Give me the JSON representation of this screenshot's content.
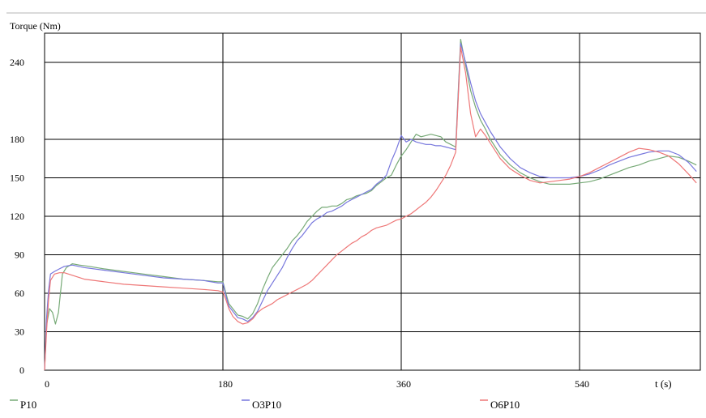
{
  "chart_data": {
    "type": "line",
    "ylabel": "Torque (Nm)",
    "xlabel": "t (s)",
    "xlim": [
      0,
      660
    ],
    "ylim": [
      0,
      260
    ],
    "xticks": [
      0,
      180,
      360,
      540
    ],
    "xtick_labels": [
      "0",
      "180",
      "360",
      "540"
    ],
    "yticks": [
      0,
      30,
      60,
      90,
      120,
      150,
      180,
      240
    ],
    "ytick_labels": [
      "0",
      "30",
      "60",
      "90",
      "120",
      "150",
      "180",
      "240"
    ],
    "grid": true,
    "legend_position": "bottom",
    "series": [
      {
        "name": "P10",
        "color": "#77aa77",
        "points": [
          [
            0,
            0
          ],
          [
            2,
            35
          ],
          [
            5,
            48
          ],
          [
            8,
            45
          ],
          [
            11,
            36
          ],
          [
            14,
            45
          ],
          [
            18,
            75
          ],
          [
            22,
            80
          ],
          [
            28,
            83
          ],
          [
            35,
            82
          ],
          [
            45,
            81
          ],
          [
            60,
            79
          ],
          [
            80,
            77
          ],
          [
            100,
            75
          ],
          [
            120,
            73
          ],
          [
            140,
            71
          ],
          [
            160,
            70
          ],
          [
            175,
            69
          ],
          [
            180,
            69
          ],
          [
            183,
            60
          ],
          [
            186,
            52
          ],
          [
            190,
            48
          ],
          [
            195,
            43
          ],
          [
            200,
            42
          ],
          [
            205,
            40
          ],
          [
            210,
            44
          ],
          [
            215,
            52
          ],
          [
            220,
            63
          ],
          [
            225,
            72
          ],
          [
            230,
            80
          ],
          [
            235,
            85
          ],
          [
            240,
            90
          ],
          [
            245,
            95
          ],
          [
            250,
            101
          ],
          [
            255,
            105
          ],
          [
            260,
            110
          ],
          [
            265,
            116
          ],
          [
            270,
            120
          ],
          [
            275,
            124
          ],
          [
            280,
            127
          ],
          [
            285,
            127
          ],
          [
            290,
            128
          ],
          [
            295,
            128
          ],
          [
            300,
            130
          ],
          [
            305,
            133
          ],
          [
            310,
            134
          ],
          [
            315,
            136
          ],
          [
            320,
            137
          ],
          [
            325,
            138
          ],
          [
            330,
            140
          ],
          [
            335,
            144
          ],
          [
            340,
            147
          ],
          [
            345,
            150
          ],
          [
            350,
            152
          ],
          [
            355,
            160
          ],
          [
            360,
            167
          ],
          [
            365,
            172
          ],
          [
            370,
            178
          ],
          [
            375,
            184
          ],
          [
            380,
            182
          ],
          [
            385,
            183
          ],
          [
            390,
            184
          ],
          [
            395,
            183
          ],
          [
            400,
            182
          ],
          [
            405,
            178
          ],
          [
            410,
            176
          ],
          [
            415,
            174
          ],
          [
            420,
            258
          ],
          [
            425,
            238
          ],
          [
            430,
            218
          ],
          [
            435,
            205
          ],
          [
            440,
            195
          ],
          [
            445,
            188
          ],
          [
            450,
            180
          ],
          [
            460,
            168
          ],
          [
            470,
            160
          ],
          [
            480,
            154
          ],
          [
            490,
            150
          ],
          [
            500,
            147
          ],
          [
            510,
            145
          ],
          [
            520,
            145
          ],
          [
            530,
            145
          ],
          [
            540,
            146
          ],
          [
            550,
            147
          ],
          [
            560,
            149
          ],
          [
            570,
            152
          ],
          [
            580,
            155
          ],
          [
            590,
            158
          ],
          [
            600,
            160
          ],
          [
            610,
            163
          ],
          [
            620,
            165
          ],
          [
            630,
            167
          ],
          [
            640,
            166
          ],
          [
            650,
            163
          ],
          [
            658,
            160
          ]
        ]
      },
      {
        "name": "O3P10",
        "color": "#7777dd",
        "points": [
          [
            0,
            0
          ],
          [
            2,
            40
          ],
          [
            4,
            62
          ],
          [
            6,
            75
          ],
          [
            10,
            77
          ],
          [
            15,
            79
          ],
          [
            20,
            81
          ],
          [
            28,
            82
          ],
          [
            40,
            80
          ],
          [
            60,
            78
          ],
          [
            80,
            76
          ],
          [
            100,
            74
          ],
          [
            120,
            72
          ],
          [
            140,
            71
          ],
          [
            160,
            70
          ],
          [
            175,
            68
          ],
          [
            180,
            68
          ],
          [
            183,
            58
          ],
          [
            186,
            50
          ],
          [
            190,
            46
          ],
          [
            195,
            41
          ],
          [
            200,
            40
          ],
          [
            205,
            38
          ],
          [
            210,
            41
          ],
          [
            215,
            46
          ],
          [
            220,
            54
          ],
          [
            225,
            62
          ],
          [
            230,
            68
          ],
          [
            235,
            74
          ],
          [
            240,
            80
          ],
          [
            245,
            88
          ],
          [
            250,
            95
          ],
          [
            255,
            101
          ],
          [
            260,
            105
          ],
          [
            265,
            110
          ],
          [
            270,
            115
          ],
          [
            275,
            118
          ],
          [
            280,
            120
          ],
          [
            285,
            123
          ],
          [
            290,
            124
          ],
          [
            295,
            126
          ],
          [
            300,
            128
          ],
          [
            305,
            131
          ],
          [
            310,
            133
          ],
          [
            315,
            135
          ],
          [
            320,
            137
          ],
          [
            325,
            139
          ],
          [
            330,
            141
          ],
          [
            335,
            145
          ],
          [
            340,
            148
          ],
          [
            345,
            152
          ],
          [
            350,
            163
          ],
          [
            355,
            172
          ],
          [
            360,
            183
          ],
          [
            365,
            178
          ],
          [
            370,
            180
          ],
          [
            375,
            178
          ],
          [
            380,
            177
          ],
          [
            385,
            176
          ],
          [
            390,
            176
          ],
          [
            395,
            175
          ],
          [
            400,
            175
          ],
          [
            405,
            174
          ],
          [
            410,
            173
          ],
          [
            415,
            172
          ],
          [
            420,
            255
          ],
          [
            425,
            240
          ],
          [
            430,
            224
          ],
          [
            435,
            210
          ],
          [
            440,
            200
          ],
          [
            445,
            193
          ],
          [
            450,
            186
          ],
          [
            460,
            174
          ],
          [
            470,
            165
          ],
          [
            480,
            158
          ],
          [
            490,
            154
          ],
          [
            500,
            151
          ],
          [
            510,
            150
          ],
          [
            520,
            150
          ],
          [
            530,
            150
          ],
          [
            540,
            151
          ],
          [
            550,
            153
          ],
          [
            560,
            156
          ],
          [
            570,
            160
          ],
          [
            580,
            163
          ],
          [
            590,
            166
          ],
          [
            600,
            168
          ],
          [
            610,
            170
          ],
          [
            620,
            171
          ],
          [
            630,
            171
          ],
          [
            640,
            168
          ],
          [
            650,
            162
          ],
          [
            658,
            155
          ]
        ]
      },
      {
        "name": "O6P10",
        "color": "#ee7777",
        "points": [
          [
            0,
            0
          ],
          [
            2,
            30
          ],
          [
            4,
            55
          ],
          [
            6,
            70
          ],
          [
            10,
            75
          ],
          [
            15,
            76
          ],
          [
            20,
            76
          ],
          [
            28,
            74
          ],
          [
            40,
            71
          ],
          [
            60,
            69
          ],
          [
            80,
            67
          ],
          [
            100,
            66
          ],
          [
            120,
            65
          ],
          [
            140,
            64
          ],
          [
            160,
            63
          ],
          [
            175,
            62
          ],
          [
            180,
            61
          ],
          [
            183,
            55
          ],
          [
            186,
            48
          ],
          [
            190,
            42
          ],
          [
            195,
            38
          ],
          [
            200,
            36
          ],
          [
            205,
            37
          ],
          [
            210,
            40
          ],
          [
            215,
            45
          ],
          [
            220,
            48
          ],
          [
            225,
            50
          ],
          [
            230,
            52
          ],
          [
            235,
            55
          ],
          [
            240,
            57
          ],
          [
            245,
            59
          ],
          [
            250,
            61
          ],
          [
            255,
            63
          ],
          [
            260,
            65
          ],
          [
            265,
            67
          ],
          [
            270,
            70
          ],
          [
            275,
            74
          ],
          [
            280,
            78
          ],
          [
            285,
            82
          ],
          [
            290,
            86
          ],
          [
            295,
            90
          ],
          [
            300,
            93
          ],
          [
            305,
            96
          ],
          [
            310,
            99
          ],
          [
            315,
            101
          ],
          [
            320,
            104
          ],
          [
            325,
            106
          ],
          [
            330,
            109
          ],
          [
            335,
            111
          ],
          [
            340,
            112
          ],
          [
            345,
            113
          ],
          [
            350,
            115
          ],
          [
            355,
            117
          ],
          [
            360,
            118
          ],
          [
            365,
            120
          ],
          [
            370,
            122
          ],
          [
            375,
            125
          ],
          [
            380,
            128
          ],
          [
            385,
            131
          ],
          [
            390,
            135
          ],
          [
            395,
            140
          ],
          [
            400,
            146
          ],
          [
            405,
            152
          ],
          [
            410,
            160
          ],
          [
            415,
            170
          ],
          [
            420,
            252
          ],
          [
            425,
            232
          ],
          [
            430,
            200
          ],
          [
            435,
            182
          ],
          [
            440,
            188
          ],
          [
            445,
            183
          ],
          [
            450,
            177
          ],
          [
            460,
            165
          ],
          [
            470,
            157
          ],
          [
            480,
            152
          ],
          [
            490,
            148
          ],
          [
            500,
            146
          ],
          [
            510,
            147
          ],
          [
            520,
            148
          ],
          [
            530,
            149
          ],
          [
            540,
            151
          ],
          [
            550,
            154
          ],
          [
            560,
            158
          ],
          [
            570,
            162
          ],
          [
            580,
            166
          ],
          [
            590,
            170
          ],
          [
            600,
            173
          ],
          [
            610,
            172
          ],
          [
            620,
            170
          ],
          [
            630,
            167
          ],
          [
            640,
            161
          ],
          [
            650,
            153
          ],
          [
            658,
            146
          ]
        ]
      }
    ]
  }
}
